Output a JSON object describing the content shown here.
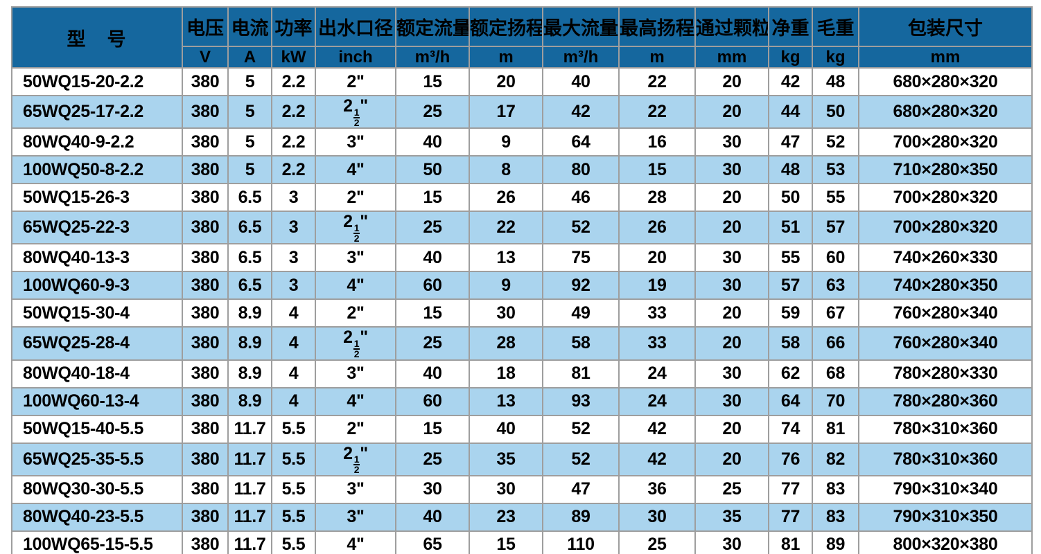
{
  "table": {
    "title_column": {
      "name": "型　号"
    },
    "columns": [
      {
        "key": "model",
        "name": "型　号",
        "unit": null
      },
      {
        "key": "voltage",
        "name": "电压",
        "unit": "V"
      },
      {
        "key": "current",
        "name": "电流",
        "unit": "A"
      },
      {
        "key": "power",
        "name": "功率",
        "unit": "kW"
      },
      {
        "key": "outlet",
        "name": "出水口径",
        "unit": "inch"
      },
      {
        "key": "rated_flow",
        "name": "额定流量",
        "unit": "m³/h"
      },
      {
        "key": "rated_head",
        "name": "额定扬程",
        "unit": "m"
      },
      {
        "key": "max_flow",
        "name": "最大流量",
        "unit": "m³/h"
      },
      {
        "key": "max_head",
        "name": "最高扬程",
        "unit": "m"
      },
      {
        "key": "particle",
        "name": "通过颗粒",
        "unit": "mm"
      },
      {
        "key": "net_weight",
        "name": "净重",
        "unit": "kg"
      },
      {
        "key": "gross_weight",
        "name": "毛重",
        "unit": "kg"
      },
      {
        "key": "package",
        "name": "包装尺寸",
        "unit": "mm"
      }
    ],
    "rows": [
      [
        "50WQ15-20-2.2",
        "380",
        "5",
        "2.2",
        "2\"",
        "15",
        "20",
        "40",
        "22",
        "20",
        "42",
        "48",
        "680×280×320"
      ],
      [
        "65WQ25-17-2.2",
        "380",
        "5",
        "2.2",
        "2½\"",
        "25",
        "17",
        "42",
        "22",
        "20",
        "44",
        "50",
        "680×280×320"
      ],
      [
        "80WQ40-9-2.2",
        "380",
        "5",
        "2.2",
        "3\"",
        "40",
        "9",
        "64",
        "16",
        "30",
        "47",
        "52",
        "700×280×320"
      ],
      [
        "100WQ50-8-2.2",
        "380",
        "5",
        "2.2",
        "4\"",
        "50",
        "8",
        "80",
        "15",
        "30",
        "48",
        "53",
        "710×280×350"
      ],
      [
        "50WQ15-26-3",
        "380",
        "6.5",
        "3",
        "2\"",
        "15",
        "26",
        "46",
        "28",
        "20",
        "50",
        "55",
        "700×280×320"
      ],
      [
        "65WQ25-22-3",
        "380",
        "6.5",
        "3",
        "2½\"",
        "25",
        "22",
        "52",
        "26",
        "20",
        "51",
        "57",
        "700×280×320"
      ],
      [
        "80WQ40-13-3",
        "380",
        "6.5",
        "3",
        "3\"",
        "40",
        "13",
        "75",
        "20",
        "30",
        "55",
        "60",
        "740×260×330"
      ],
      [
        "100WQ60-9-3",
        "380",
        "6.5",
        "3",
        "4\"",
        "60",
        "9",
        "92",
        "19",
        "30",
        "57",
        "63",
        "740×280×350"
      ],
      [
        "50WQ15-30-4",
        "380",
        "8.9",
        "4",
        "2\"",
        "15",
        "30",
        "49",
        "33",
        "20",
        "59",
        "67",
        "760×280×340"
      ],
      [
        "65WQ25-28-4",
        "380",
        "8.9",
        "4",
        "2½\"",
        "25",
        "28",
        "58",
        "33",
        "20",
        "58",
        "66",
        "760×280×340"
      ],
      [
        "80WQ40-18-4",
        "380",
        "8.9",
        "4",
        "3\"",
        "40",
        "18",
        "81",
        "24",
        "30",
        "62",
        "68",
        "780×280×330"
      ],
      [
        "100WQ60-13-4",
        "380",
        "8.9",
        "4",
        "4\"",
        "60",
        "13",
        "93",
        "24",
        "30",
        "64",
        "70",
        "780×280×360"
      ],
      [
        "50WQ15-40-5.5",
        "380",
        "11.7",
        "5.5",
        "2\"",
        "15",
        "40",
        "52",
        "42",
        "20",
        "74",
        "81",
        "780×310×360"
      ],
      [
        "65WQ25-35-5.5",
        "380",
        "11.7",
        "5.5",
        "2½\"",
        "25",
        "35",
        "52",
        "42",
        "20",
        "76",
        "82",
        "780×310×360"
      ],
      [
        "80WQ30-30-5.5",
        "380",
        "11.7",
        "5.5",
        "3\"",
        "30",
        "30",
        "47",
        "36",
        "25",
        "77",
        "83",
        "790×310×340"
      ],
      [
        "80WQ40-23-5.5",
        "380",
        "11.7",
        "5.5",
        "3\"",
        "40",
        "23",
        "89",
        "30",
        "35",
        "77",
        "83",
        "790×310×350"
      ],
      [
        "100WQ65-15-5.5",
        "380",
        "11.7",
        "5.5",
        "4\"",
        "65",
        "15",
        "110",
        "25",
        "30",
        "81",
        "89",
        "800×320×380"
      ]
    ],
    "colors": {
      "header_background": "#15679e",
      "alternate_row_background": "#aad4ee",
      "grid_line": "#9e9e9e",
      "header_text": "#ffffff",
      "body_text": "#000000"
    }
  }
}
